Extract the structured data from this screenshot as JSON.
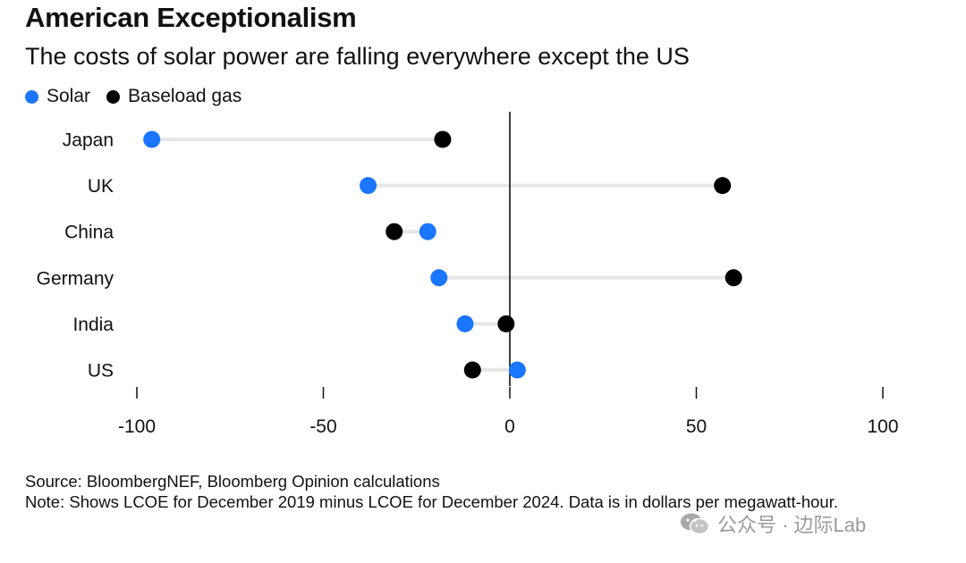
{
  "header": {
    "title": "American Exceptionalism",
    "subtitle": "The costs of solar power are falling everywhere except the US"
  },
  "legend": {
    "items": [
      {
        "label": "Solar",
        "color": "#1a75ff"
      },
      {
        "label": "Baseload gas",
        "color": "#000000"
      }
    ]
  },
  "chart_data": {
    "type": "dot",
    "orientation": "horizontal",
    "categories": [
      "Japan",
      "UK",
      "China",
      "Germany",
      "India",
      "US"
    ],
    "series": [
      {
        "name": "Solar",
        "color": "#1a75ff",
        "values": [
          -96,
          -38,
          -22,
          -19,
          -12,
          2
        ]
      },
      {
        "name": "Baseload gas",
        "color": "#000000",
        "values": [
          -18,
          57,
          -31,
          60,
          -1,
          -10
        ]
      }
    ],
    "xlim": [
      -100,
      100
    ],
    "xticks": [
      -100,
      -50,
      0,
      50,
      100
    ],
    "xtick_labels": [
      "-100",
      "-50",
      "0",
      "50",
      "100"
    ],
    "zero_line": true,
    "connector_color": "#e6e6e6",
    "legend_position": "top-left",
    "grid": false
  },
  "footer": {
    "source": "Source: BloombergNEF, Bloomberg Opinion calculations",
    "note": "Note: Shows LCOE for December 2019 minus LCOE for December 2024. Data is in dollars per megawatt-hour."
  },
  "watermark": {
    "text": "公众号 · 边际Lab",
    "icon": "wechat-icon"
  }
}
